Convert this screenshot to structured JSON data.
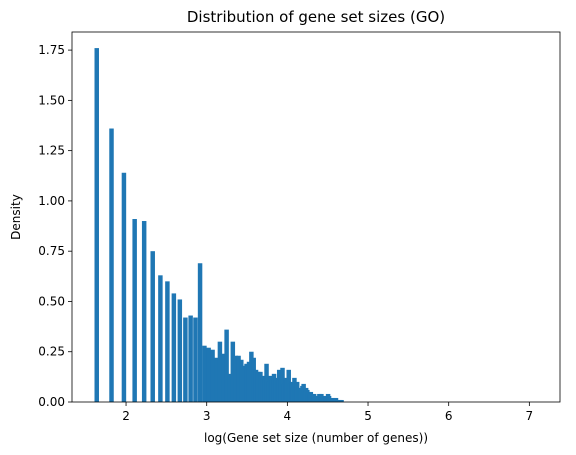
{
  "chart_data": {
    "type": "bar",
    "title": "Distribution of gene set sizes (GO)",
    "xlabel": "log(Gene set size (number of genes))",
    "ylabel": "Density",
    "xlim": [
      1.33,
      7.38
    ],
    "ylim": [
      0,
      1.84
    ],
    "x_ticks": [
      "2",
      "3",
      "4",
      "5",
      "6",
      "7"
    ],
    "y_ticks": [
      "0.00",
      "0.25",
      "0.50",
      "0.75",
      "1.00",
      "1.25",
      "1.50",
      "1.75"
    ],
    "x_tick_values": [
      2,
      3,
      4,
      5,
      6,
      7
    ],
    "y_tick_values": [
      0,
      0.25,
      0.5,
      0.75,
      1.0,
      1.25,
      1.5,
      1.75
    ],
    "grid": false,
    "bar_color": "#1f77b4",
    "bin_width": 0.0556,
    "x": [
      1.609,
      1.792,
      1.946,
      2.079,
      2.197,
      2.303,
      2.398,
      2.485,
      2.565,
      2.639,
      2.708,
      2.773,
      2.833,
      2.89,
      2.944,
      2.996,
      3.045,
      3.091,
      3.136,
      3.178,
      3.219,
      3.258,
      3.296,
      3.332,
      3.367,
      3.401,
      3.434,
      3.466,
      3.497,
      3.526,
      3.555,
      3.584,
      3.611,
      3.638,
      3.664,
      3.689,
      3.714,
      3.738,
      3.761,
      3.784,
      3.807,
      3.829,
      3.85,
      3.871,
      3.892,
      3.912,
      3.932,
      3.951,
      3.97,
      3.989,
      4.007,
      4.025,
      4.043,
      4.06,
      4.078,
      4.094,
      4.111,
      4.127,
      4.143,
      4.159,
      4.174,
      4.19,
      4.205,
      4.22,
      4.234,
      4.248,
      4.263,
      4.277,
      4.29,
      4.304,
      4.317,
      4.331,
      4.344,
      4.357,
      4.369,
      4.382,
      4.394,
      4.407,
      4.419,
      4.431,
      4.443,
      4.454,
      4.466,
      4.477,
      4.489,
      4.5,
      4.511,
      4.522,
      4.533,
      4.543,
      4.554,
      4.564,
      4.575,
      4.585,
      4.595,
      4.605,
      4.615,
      4.625,
      4.635,
      4.644
    ],
    "values": [
      1.76,
      1.36,
      1.14,
      0.91,
      0.9,
      0.75,
      0.63,
      0.6,
      0.54,
      0.51,
      0.42,
      0.43,
      0.42,
      0.69,
      0.28,
      0.27,
      0.26,
      0.22,
      0.3,
      0.24,
      0.36,
      0.14,
      0.3,
      0.23,
      0.23,
      0.21,
      0.18,
      0.19,
      0.2,
      0.25,
      0.22,
      0.16,
      0.15,
      0.15,
      0.13,
      0.11,
      0.19,
      0.1,
      0.13,
      0.11,
      0.14,
      0.12,
      0.1,
      0.16,
      0.13,
      0.17,
      0.09,
      0.12,
      0.11,
      0.16,
      0.09,
      0.1,
      0.07,
      0.12,
      0.08,
      0.1,
      0.07,
      0.06,
      0.07,
      0.08,
      0.09,
      0.05,
      0.07,
      0.06,
      0.05,
      0.04,
      0.05,
      0.04,
      0.03,
      0.04,
      0.03,
      0.03,
      0.02,
      0.03,
      0.04,
      0.03,
      0.04,
      0.03,
      0.02,
      0.03,
      0.03,
      0.02,
      0.02,
      0.04,
      0.03,
      0.02,
      0.02,
      0.01,
      0.02,
      0.01,
      0.01,
      0.02,
      0.02,
      0.01,
      0.01,
      0.01,
      0.01,
      0.01,
      0.01,
      0.01
    ]
  }
}
